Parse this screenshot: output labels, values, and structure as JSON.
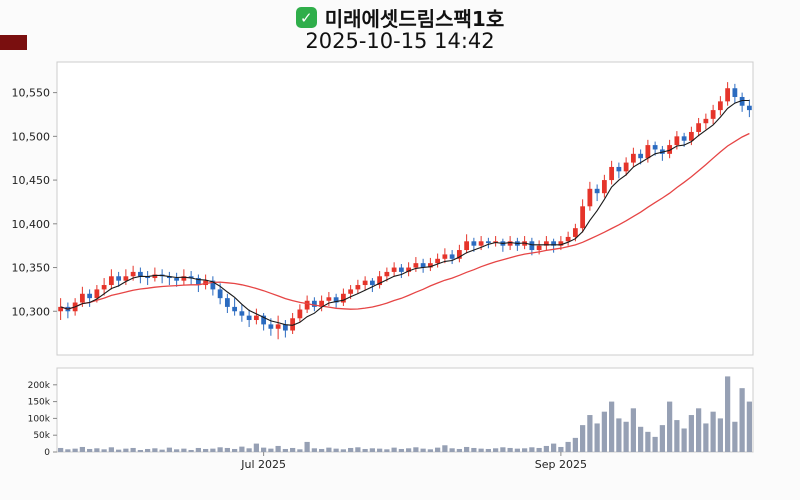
{
  "header": {
    "title": "미래에셋드림스팩1호",
    "subtitle": "2025-10-15 14:42",
    "check_icon": "✓",
    "check_color": "#2fae4a",
    "corner_swatch_color": "#7a0f0f"
  },
  "chart_data": {
    "type": "candlestick",
    "title": "미래에셋드림스팩1호",
    "timestamp": "2025-10-15 14:42",
    "ylim": [
      10250,
      10585
    ],
    "y_ticks": [
      {
        "value": 10300,
        "label": "10,300"
      },
      {
        "value": 10350,
        "label": "10,350"
      },
      {
        "value": 10400,
        "label": "10,400"
      },
      {
        "value": 10450,
        "label": "10,450"
      },
      {
        "value": 10500,
        "label": "10,500"
      },
      {
        "value": 10550,
        "label": "10,550"
      }
    ],
    "x_ticks": [
      {
        "index": 28,
        "label": "Jul 2025"
      },
      {
        "index": 69,
        "label": "Sep 2025"
      }
    ],
    "volume_max": 250,
    "volume_unit": "k",
    "volume_ticks": [
      {
        "value": 0,
        "label": "0"
      },
      {
        "value": 50,
        "label": "50k"
      },
      {
        "value": 100,
        "label": "100k"
      },
      {
        "value": 150,
        "label": "150k"
      },
      {
        "value": 200,
        "label": "200k"
      }
    ],
    "ma_short_period": 5,
    "ma_long_period": 20,
    "colors": {
      "up": "#e5342a",
      "down": "#2b6bc0",
      "ma_short": "#1a1a1a",
      "ma_long": "#e64545",
      "volume": "#96a0b4",
      "frame": "#cccccc",
      "tick": "#888888",
      "label": "#222222"
    },
    "legend_note": "candles format: [open, high, low, close, volume_k]",
    "candles": [
      [
        10300,
        10315,
        10290,
        10305,
        12
      ],
      [
        10305,
        10310,
        10292,
        10300,
        8
      ],
      [
        10300,
        10315,
        10295,
        10310,
        10
      ],
      [
        10310,
        10328,
        10305,
        10320,
        15
      ],
      [
        10320,
        10325,
        10305,
        10315,
        9
      ],
      [
        10315,
        10330,
        10310,
        10325,
        11
      ],
      [
        10325,
        10338,
        10318,
        10330,
        8
      ],
      [
        10330,
        10348,
        10325,
        10340,
        14
      ],
      [
        10340,
        10345,
        10328,
        10335,
        7
      ],
      [
        10335,
        10348,
        10330,
        10340,
        10
      ],
      [
        10340,
        10352,
        10335,
        10345,
        12
      ],
      [
        10345,
        10350,
        10332,
        10340,
        6
      ],
      [
        10340,
        10346,
        10330,
        10338,
        9
      ],
      [
        10338,
        10350,
        10334,
        10342,
        11
      ],
      [
        10342,
        10348,
        10332,
        10340,
        7
      ],
      [
        10340,
        10345,
        10330,
        10338,
        13
      ],
      [
        10338,
        10344,
        10328,
        10335,
        8
      ],
      [
        10335,
        10348,
        10330,
        10340,
        10
      ],
      [
        10340,
        10346,
        10330,
        10338,
        6
      ],
      [
        10338,
        10342,
        10322,
        10330,
        12
      ],
      [
        10330,
        10342,
        10325,
        10335,
        9
      ],
      [
        10335,
        10340,
        10318,
        10325,
        10
      ],
      [
        10325,
        10332,
        10308,
        10315,
        14
      ],
      [
        10315,
        10320,
        10298,
        10305,
        12
      ],
      [
        10305,
        10315,
        10295,
        10300,
        9
      ],
      [
        10300,
        10308,
        10288,
        10295,
        16
      ],
      [
        10295,
        10302,
        10282,
        10290,
        11
      ],
      [
        10290,
        10303,
        10285,
        10295,
        25
      ],
      [
        10295,
        10298,
        10278,
        10285,
        13
      ],
      [
        10285,
        10292,
        10272,
        10280,
        10
      ],
      [
        10280,
        10295,
        10268,
        10285,
        18
      ],
      [
        10285,
        10290,
        10270,
        10278,
        9
      ],
      [
        10278,
        10298,
        10274,
        10292,
        12
      ],
      [
        10292,
        10308,
        10288,
        10302,
        8
      ],
      [
        10302,
        10318,
        10298,
        10312,
        30
      ],
      [
        10312,
        10316,
        10300,
        10305,
        11
      ],
      [
        10305,
        10318,
        10300,
        10312,
        9
      ],
      [
        10312,
        10322,
        10306,
        10316,
        13
      ],
      [
        10316,
        10320,
        10304,
        10310,
        10
      ],
      [
        10310,
        10326,
        10306,
        10320,
        8
      ],
      [
        10320,
        10330,
        10314,
        10325,
        12
      ],
      [
        10325,
        10336,
        10320,
        10330,
        14
      ],
      [
        10330,
        10340,
        10324,
        10335,
        9
      ],
      [
        10335,
        10338,
        10322,
        10330,
        11
      ],
      [
        10330,
        10346,
        10326,
        10340,
        10
      ],
      [
        10340,
        10350,
        10334,
        10345,
        8
      ],
      [
        10345,
        10356,
        10340,
        10350,
        13
      ],
      [
        10350,
        10354,
        10338,
        10345,
        9
      ],
      [
        10345,
        10356,
        10340,
        10350,
        11
      ],
      [
        10350,
        10362,
        10345,
        10355,
        14
      ],
      [
        10355,
        10360,
        10344,
        10350,
        10
      ],
      [
        10350,
        10361,
        10346,
        10355,
        8
      ],
      [
        10355,
        10366,
        10350,
        10360,
        13
      ],
      [
        10360,
        10372,
        10355,
        10365,
        20
      ],
      [
        10365,
        10370,
        10354,
        10360,
        11
      ],
      [
        10360,
        10376,
        10356,
        10370,
        9
      ],
      [
        10370,
        10388,
        10366,
        10380,
        15
      ],
      [
        10380,
        10384,
        10368,
        10375,
        12
      ],
      [
        10375,
        10386,
        10370,
        10380,
        10
      ],
      [
        10380,
        10384,
        10372,
        10378,
        9
      ],
      [
        10378,
        10386,
        10374,
        10380,
        11
      ],
      [
        10380,
        10383,
        10368,
        10375,
        14
      ],
      [
        10375,
        10386,
        10370,
        10380,
        12
      ],
      [
        10380,
        10384,
        10369,
        10375,
        10
      ],
      [
        10375,
        10386,
        10371,
        10380,
        11
      ],
      [
        10380,
        10384,
        10364,
        10370,
        14
      ],
      [
        10370,
        10381,
        10365,
        10375,
        12
      ],
      [
        10375,
        10386,
        10370,
        10380,
        18
      ],
      [
        10380,
        10383,
        10367,
        10375,
        25
      ],
      [
        10375,
        10386,
        10370,
        10380,
        15
      ],
      [
        10380,
        10391,
        10375,
        10385,
        30
      ],
      [
        10385,
        10400,
        10380,
        10395,
        42
      ],
      [
        10395,
        10428,
        10390,
        10420,
        80
      ],
      [
        10420,
        10448,
        10415,
        10440,
        110
      ],
      [
        10440,
        10445,
        10426,
        10435,
        85
      ],
      [
        10435,
        10456,
        10430,
        10450,
        120
      ],
      [
        10450,
        10472,
        10445,
        10465,
        150
      ],
      [
        10465,
        10470,
        10452,
        10460,
        100
      ],
      [
        10460,
        10476,
        10455,
        10470,
        90
      ],
      [
        10470,
        10487,
        10465,
        10480,
        130
      ],
      [
        10480,
        10485,
        10468,
        10475,
        75
      ],
      [
        10475,
        10496,
        10470,
        10490,
        60
      ],
      [
        10490,
        10494,
        10478,
        10485,
        45
      ],
      [
        10485,
        10489,
        10472,
        10480,
        80
      ],
      [
        10480,
        10496,
        10475,
        10490,
        150
      ],
      [
        10490,
        10506,
        10485,
        10500,
        95
      ],
      [
        10500,
        10504,
        10488,
        10495,
        70
      ],
      [
        10495,
        10511,
        10490,
        10505,
        110
      ],
      [
        10505,
        10521,
        10500,
        10515,
        130
      ],
      [
        10515,
        10526,
        10508,
        10520,
        85
      ],
      [
        10520,
        10536,
        10514,
        10530,
        120
      ],
      [
        10530,
        10546,
        10524,
        10540,
        100
      ],
      [
        10540,
        10562,
        10535,
        10555,
        225
      ],
      [
        10555,
        10560,
        10538,
        10545,
        90
      ],
      [
        10545,
        10550,
        10528,
        10535,
        190
      ],
      [
        10535,
        10542,
        10522,
        10530,
        150
      ]
    ]
  }
}
